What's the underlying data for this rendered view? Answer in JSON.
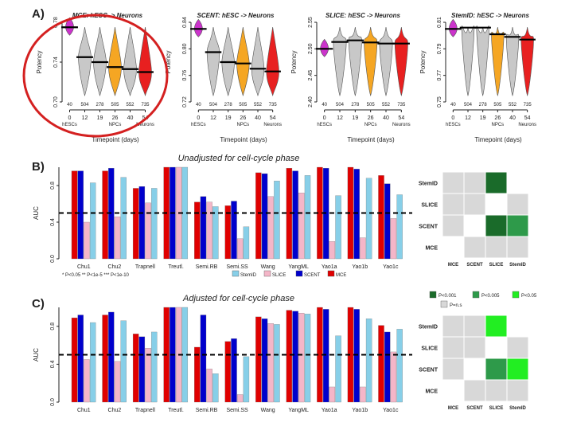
{
  "colors": {
    "MCE": "#e00000",
    "SCENT": "#0000cc",
    "SLICE": "#f4b6c8",
    "StemID": "#87cfe8",
    "hESCs": "#cc33cc",
    "NPCs": "#f5a623",
    "Neurons": "#e82020",
    "grey": "#c8c8c8",
    "dkgreen": "#1a6b2a",
    "mdgreen": "#2e9a4a",
    "ltgreen": "#22ee22",
    "circle": "#d42020"
  },
  "panel_labels": {
    "a": "A)",
    "b": "B)",
    "c": "C)"
  },
  "chart_data": [
    {
      "type": "violin",
      "panel": "A",
      "common": {
        "xlabel": "Timepoint (days)",
        "ylabel": "Potency",
        "timepoints": [
          "0",
          "12",
          "19",
          "26",
          "40",
          "54"
        ],
        "counts": [
          "40",
          "504",
          "278",
          "505",
          "552",
          "735"
        ],
        "group_labels": [
          "hESCs",
          "NPCs",
          "Neurons"
        ]
      },
      "plots": [
        {
          "title": "MCE: hESC -> Neurons",
          "yticks": [
            "0.70",
            "0.74",
            "0.78"
          ],
          "ylim": [
            0.7,
            0.78
          ],
          "medians": [
            0.775,
            0.745,
            0.74,
            0.735,
            0.733,
            0.73
          ]
        },
        {
          "title": "SCENT: hESC -> Neurons",
          "yticks": [
            "0.72",
            "0.76",
            "0.80",
            "0.84"
          ],
          "ylim": [
            0.72,
            0.84
          ],
          "medians": [
            0.83,
            0.795,
            0.78,
            0.778,
            0.77,
            0.766
          ]
        },
        {
          "title": "SLICE: hESC -> Neurons",
          "yticks": [
            "2.40",
            "2.45",
            "2.50",
            "2.55"
          ],
          "ylim": [
            2.4,
            2.55
          ],
          "medians": [
            2.5,
            2.513,
            2.516,
            2.512,
            2.51,
            2.51
          ]
        },
        {
          "title": "StemID: hESC -> Neurons",
          "yticks": [
            "0.75",
            "0.77",
            "0.79",
            "0.81"
          ],
          "ylim": [
            0.75,
            0.81
          ],
          "medians": [
            0.805,
            0.806,
            0.806,
            0.801,
            0.799,
            0.797
          ]
        }
      ]
    },
    {
      "type": "bar",
      "panel": "B",
      "title": "Unadjusted for cell-cycle phase",
      "ylabel": "AUC",
      "yticks": [
        "0.0",
        "0.4",
        "0.8"
      ],
      "ylim": [
        0,
        1.0
      ],
      "reference_line": 0.5,
      "categories": [
        "Chu1",
        "Chu2",
        "Trapnell",
        "Treutl.",
        "Semi.RB",
        "Semi.SS",
        "Wang",
        "YangML",
        "Yao1a",
        "Yao1b",
        "Yao1c"
      ],
      "series": [
        {
          "name": "MCE",
          "values": [
            0.96,
            0.96,
            0.77,
            1.0,
            0.62,
            0.58,
            0.94,
            0.99,
            1.0,
            1.0,
            0.91
          ]
        },
        {
          "name": "SCENT",
          "values": [
            0.96,
            0.99,
            0.79,
            1.0,
            0.68,
            0.63,
            0.93,
            0.96,
            0.99,
            0.98,
            0.82
          ]
        },
        {
          "name": "SLICE",
          "values": [
            0.4,
            0.46,
            0.61,
            1.0,
            0.62,
            0.22,
            0.68,
            0.72,
            0.19,
            0.23,
            0.44
          ]
        },
        {
          "name": "StemID",
          "values": [
            0.83,
            0.89,
            0.77,
            1.0,
            0.57,
            0.35,
            0.85,
            0.91,
            0.69,
            0.88,
            0.7
          ]
        }
      ],
      "sig_note": "* P<0.05  ** P<1e-5  *** P<1e-10",
      "legend": [
        "StemID",
        "SLICE",
        "SCENT",
        "MCE"
      ]
    },
    {
      "type": "bar",
      "panel": "C",
      "title": "Adjusted for cell-cycle phase",
      "ylabel": "AUC",
      "yticks": [
        "0.0",
        "0.4",
        "0.8"
      ],
      "ylim": [
        0,
        1.0
      ],
      "reference_line": 0.5,
      "categories": [
        "Chu1",
        "Chu2",
        "Trapnell",
        "Treutl.",
        "Semi.RB",
        "Semi.SS",
        "Wang",
        "YangML",
        "Yao1a",
        "Yao1b",
        "Yao1c"
      ],
      "series": [
        {
          "name": "MCE",
          "values": [
            0.89,
            0.92,
            0.72,
            1.0,
            0.58,
            0.64,
            0.9,
            0.97,
            1.0,
            1.0,
            0.81
          ]
        },
        {
          "name": "SCENT",
          "values": [
            0.92,
            0.95,
            0.69,
            1.0,
            0.92,
            0.67,
            0.88,
            0.96,
            0.98,
            0.98,
            0.74
          ]
        },
        {
          "name": "SLICE",
          "values": [
            0.45,
            0.43,
            0.57,
            1.0,
            0.35,
            0.08,
            0.83,
            0.94,
            0.16,
            0.16,
            0.53
          ]
        },
        {
          "name": "StemID",
          "values": [
            0.84,
            0.86,
            0.74,
            1.0,
            0.3,
            0.48,
            0.82,
            0.93,
            0.7,
            0.88,
            0.77
          ]
        }
      ]
    },
    {
      "type": "heatmap",
      "panel": "B-right",
      "rows": [
        "StemID",
        "SLICE",
        "SCENT",
        "MCE"
      ],
      "cols": [
        "MCE",
        "SCENT",
        "SLICE",
        "StemID"
      ],
      "cells": [
        [
          "grey",
          "grey",
          "dkgreen",
          "white"
        ],
        [
          "grey",
          "grey",
          "white",
          "grey"
        ],
        [
          "grey",
          "white",
          "dkgreen",
          "mdgreen"
        ],
        [
          "white",
          "grey",
          "grey",
          "grey"
        ]
      ]
    },
    {
      "type": "heatmap",
      "panel": "C-right",
      "rows": [
        "StemID",
        "SLICE",
        "SCENT",
        "MCE"
      ],
      "cols": [
        "MCE",
        "SCENT",
        "SLICE",
        "StemID"
      ],
      "cells": [
        [
          "grey",
          "grey",
          "ltgreen",
          "white"
        ],
        [
          "grey",
          "grey",
          "white",
          "grey"
        ],
        [
          "grey",
          "white",
          "mdgreen",
          "ltgreen"
        ],
        [
          "white",
          "grey",
          "grey",
          "grey"
        ]
      ]
    }
  ],
  "heat_legend": [
    {
      "label": "P<0.001",
      "color": "dkgreen"
    },
    {
      "label": "P<0.005",
      "color": "mdgreen"
    },
    {
      "label": "P<0.05",
      "color": "ltgreen"
    },
    {
      "label": "P=n.s",
      "color": "grey"
    }
  ]
}
